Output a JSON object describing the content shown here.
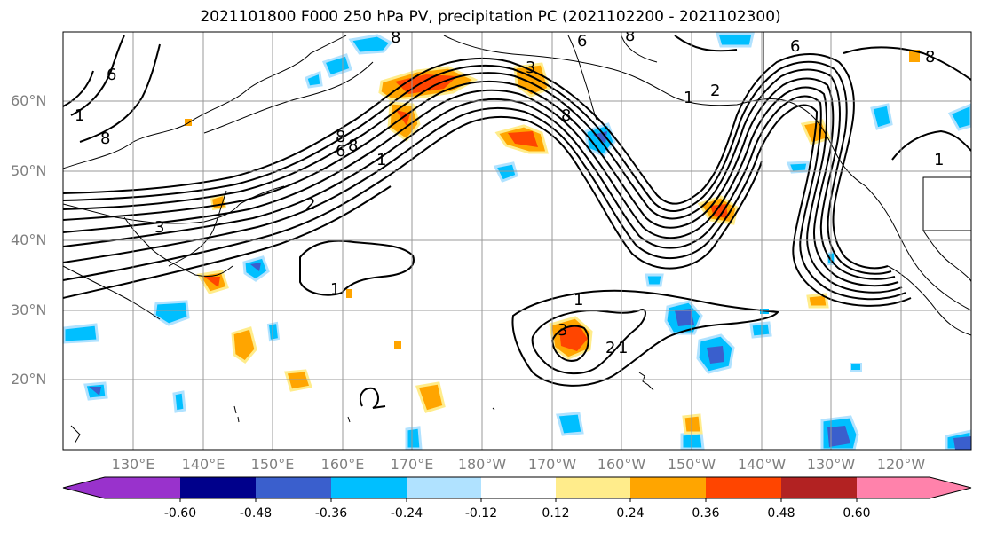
{
  "title": "2021101800 F000 250 hPa PV, precipitation PC (2021102200 - 2021102300)",
  "lat_labels": [
    "60°N",
    "50°N",
    "40°N",
    "30°N",
    "20°N"
  ],
  "lon_labels": [
    "130°E",
    "140°E",
    "150°E",
    "160°E",
    "170°E",
    "180°W",
    "170°W",
    "160°W",
    "150°W",
    "140°W",
    "130°W",
    "120°W"
  ],
  "colorbar": {
    "tick_labels": [
      "-0.60",
      "-0.48",
      "-0.36",
      "-0.24",
      "-0.12",
      "0.12",
      "0.24",
      "0.36",
      "0.48",
      "0.60"
    ],
    "colors": [
      "#9932cc",
      "#00008b",
      "#3a5fcd",
      "#00bfff",
      "#b0e2ff",
      "#ffffff",
      "#ffec8b",
      "#ffa500",
      "#ff4500",
      "#b22222",
      "#ff82ab"
    ]
  },
  "contour_labels": [
    "6",
    "8",
    "1",
    "8",
    "6",
    "8",
    "8",
    "1",
    "2",
    "3",
    "1",
    "8",
    "6",
    "8",
    "1",
    "2",
    "3",
    "1",
    "1",
    "3",
    "2",
    "1",
    "6",
    "8"
  ]
}
